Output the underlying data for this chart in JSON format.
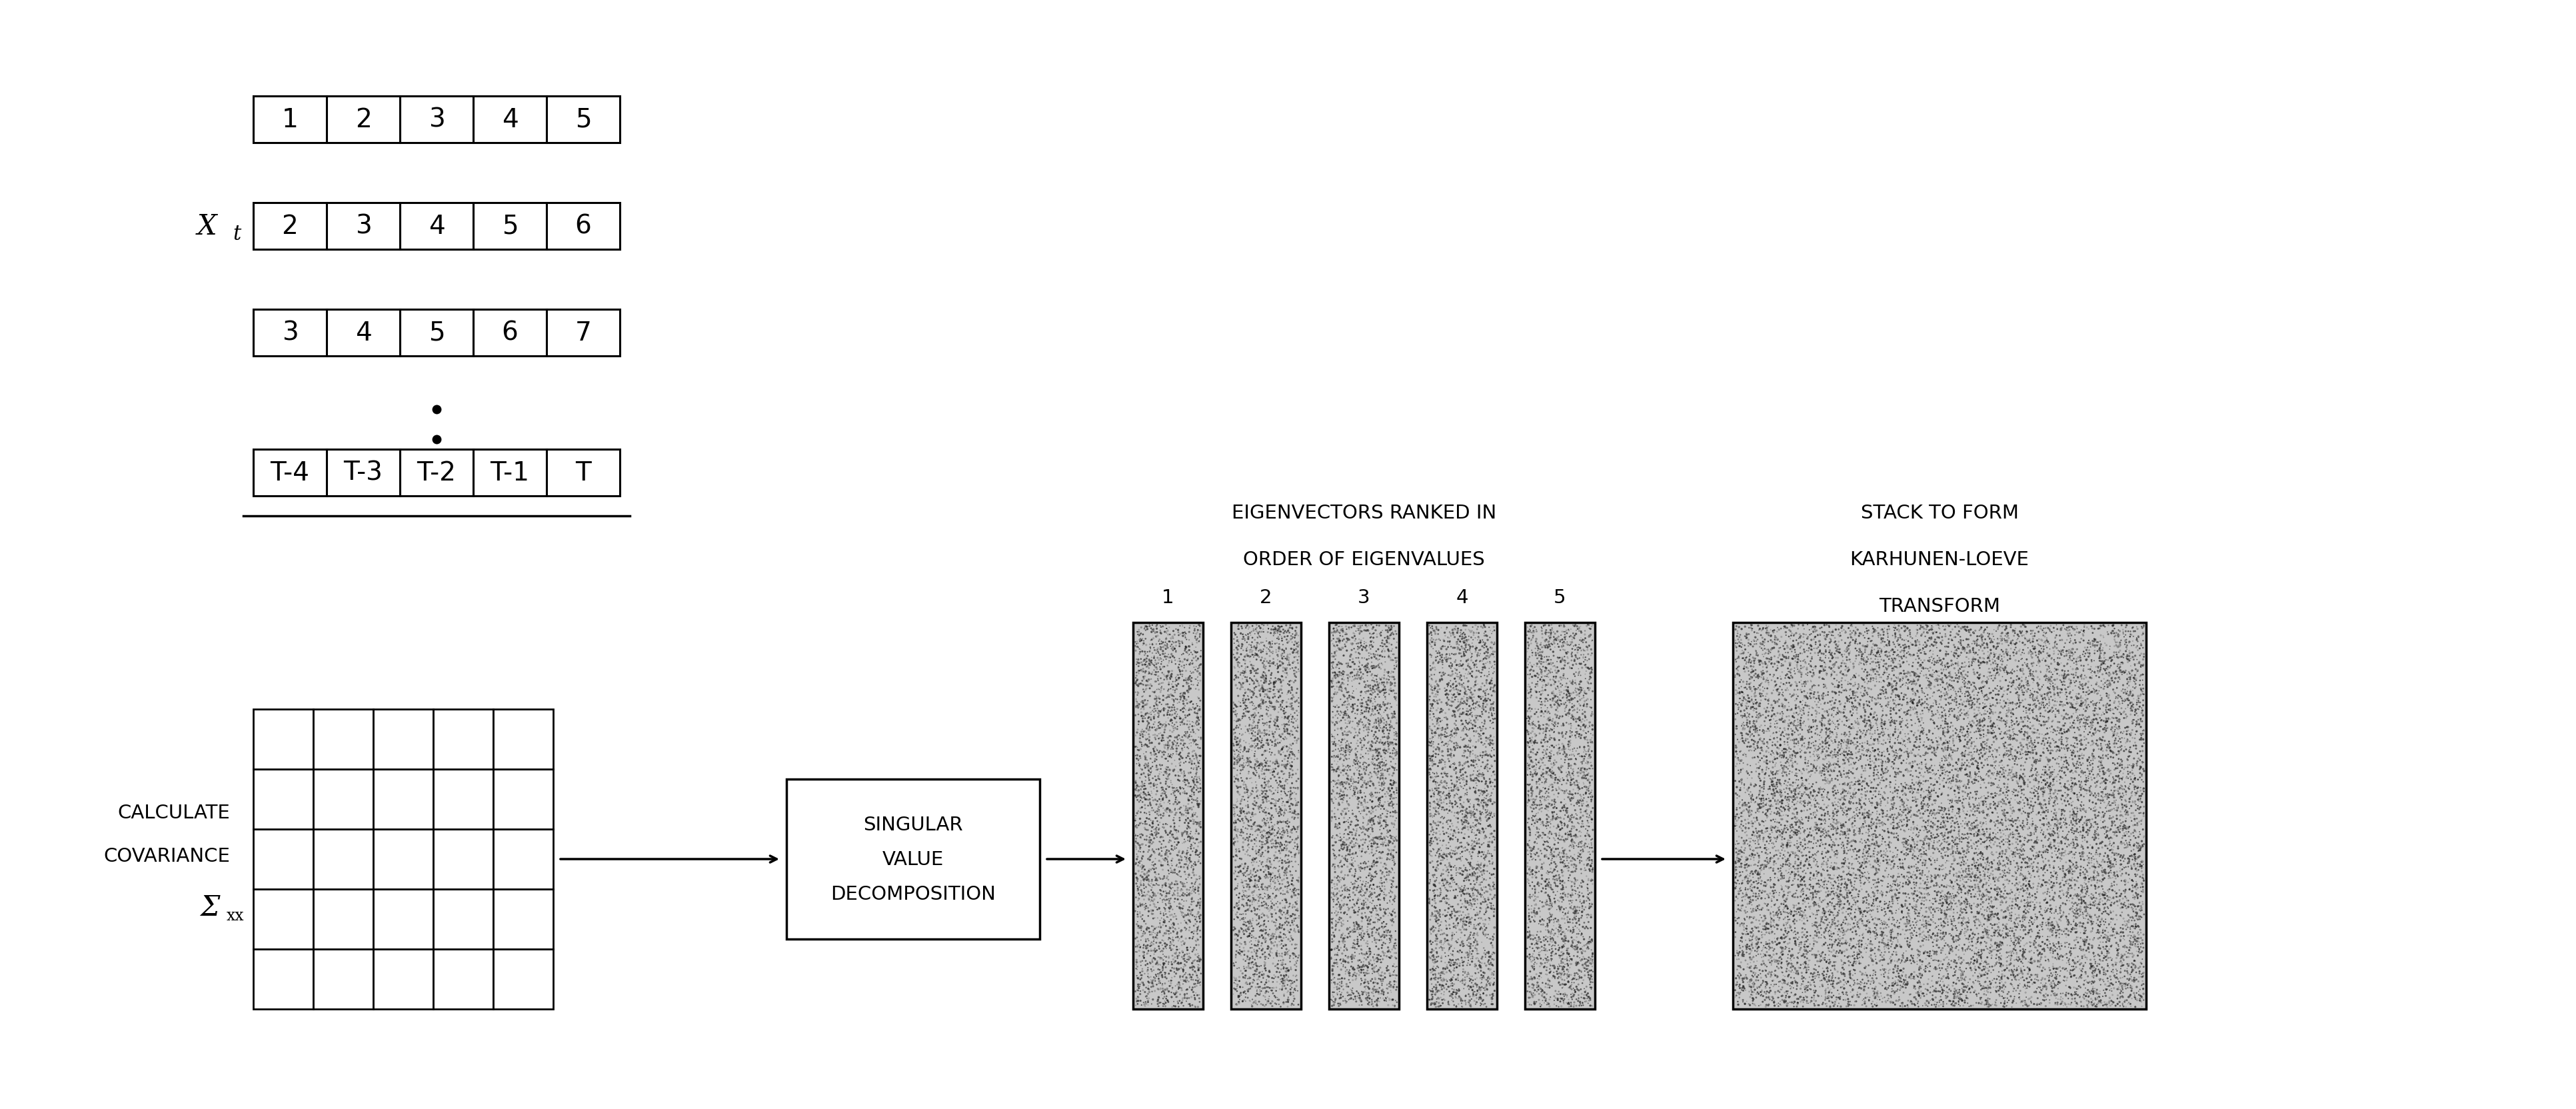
{
  "bg_color": "#ffffff",
  "line_color": "#000000",
  "row_values": [
    [
      "1",
      "2",
      "3",
      "4",
      "5"
    ],
    [
      "2",
      "3",
      "4",
      "5",
      "6"
    ],
    [
      "3",
      "4",
      "5",
      "6",
      "7"
    ],
    [
      "T-4",
      "T-3",
      "T-2",
      "T-1",
      "T"
    ]
  ],
  "xt_label_X": "X",
  "xt_label_t": "t",
  "calculate_text": [
    "CALCULATE",
    "COVARIANCE",
    "Σ",
    "xx"
  ],
  "svd_text": [
    "SINGULAR",
    "VALUE",
    "DECOMPOSITION"
  ],
  "eigenvectors_title": [
    "EIGENVECTORS RANKED IN",
    "ORDER OF EIGENVALUES"
  ],
  "eigenvector_numbers": [
    "1",
    "2",
    "3",
    "4",
    "5"
  ],
  "stack_title": [
    "STACK TO FORM",
    "KARHUNEN-LOEVE",
    "TRANSFORM"
  ],
  "font_size_cells": 28,
  "font_size_labels": 22,
  "font_size_title": 21,
  "font_size_sigma": 30
}
